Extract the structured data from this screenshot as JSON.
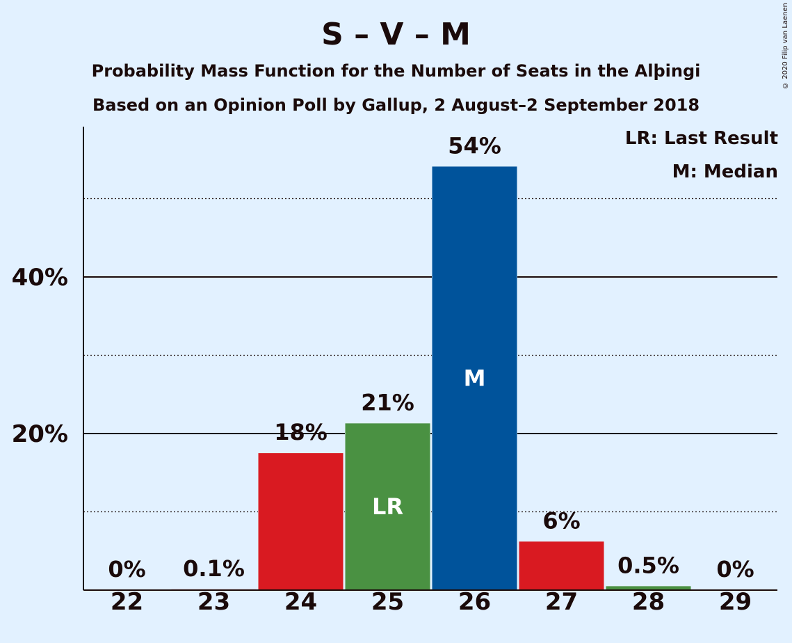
{
  "header": {
    "title": "S – V – M",
    "subtitle1": "Probability Mass Function for the Number of Seats in the Alþingi",
    "subtitle2": "Based on an Opinion Poll by Gallup, 2 August–2 September 2018",
    "copyright": "© 2020 Filip van Laenen"
  },
  "legend": {
    "last_result": "LR: Last Result",
    "median": "M: Median"
  },
  "chart_data": {
    "type": "bar",
    "categories": [
      "22",
      "23",
      "24",
      "25",
      "26",
      "27",
      "28",
      "29"
    ],
    "values": [
      0,
      0.1,
      17.5,
      21.3,
      54.1,
      6.2,
      0.5,
      0
    ],
    "data_labels": [
      "0%",
      "0.1%",
      "18%",
      "21%",
      "54%",
      "6%",
      "0.5%",
      "0%"
    ],
    "bar_colors": [
      "#d91a21",
      "#d91a21",
      "#d91a21",
      "#4a9142",
      "#00539b",
      "#d91a21",
      "#4a9142",
      "#d91a21"
    ],
    "bar_markers": [
      "",
      "",
      "",
      "LR",
      "M",
      "",
      "",
      ""
    ],
    "y_ticks": [
      20,
      40
    ],
    "y_tick_labels": [
      "20%",
      "40%"
    ],
    "minor_gridlines": [
      10,
      30,
      50
    ],
    "ylim": [
      0,
      59
    ],
    "grid": true,
    "legend_position": "top-right"
  }
}
